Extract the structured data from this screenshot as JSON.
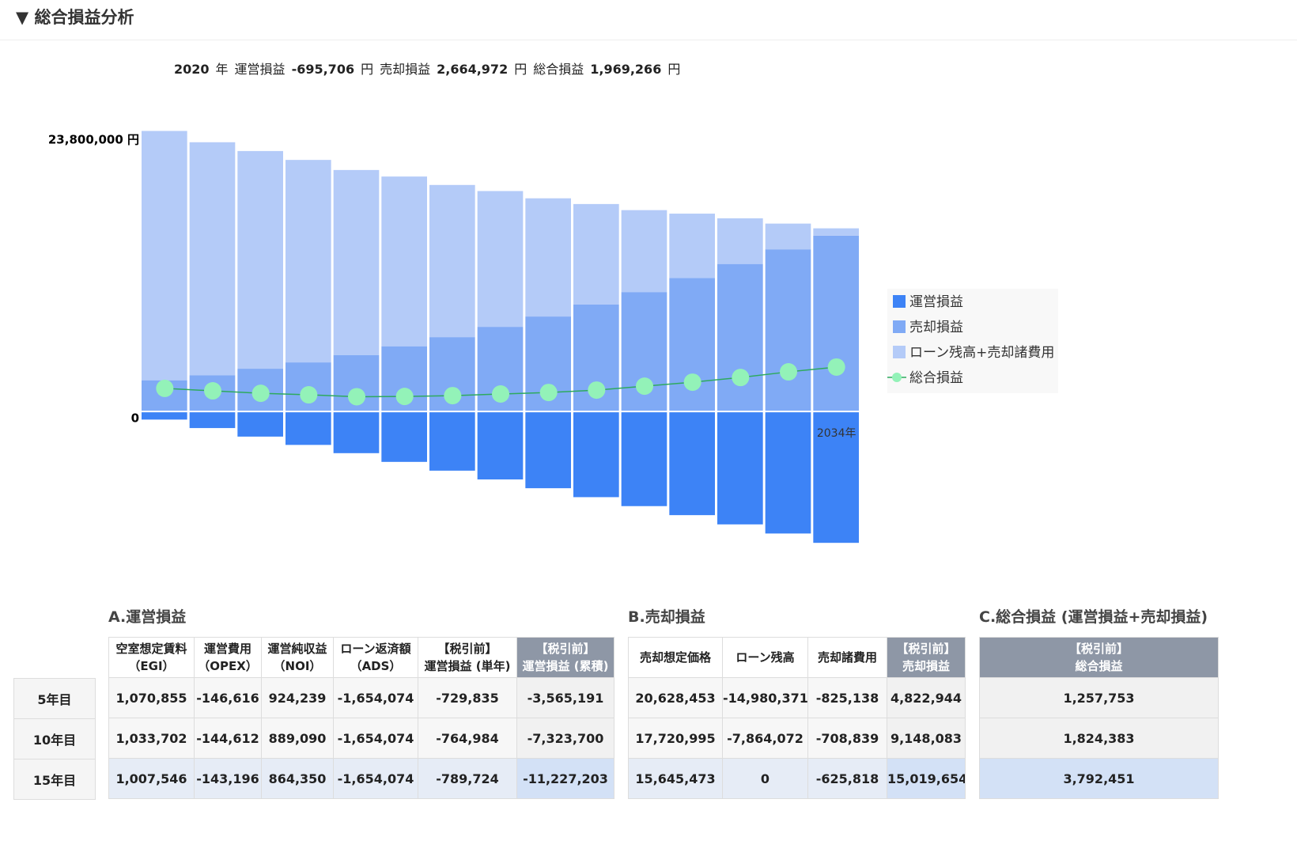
{
  "header": {
    "title": "▼ 総合損益分析"
  },
  "summary": {
    "year": "2020",
    "year_unit": "年",
    "items": [
      {
        "label": "運営損益",
        "value": "-695,706",
        "unit": "円"
      },
      {
        "label": "売却損益",
        "value": "2,664,972",
        "unit": "円"
      },
      {
        "label": "総合損益",
        "value": "1,969,266",
        "unit": "円"
      }
    ]
  },
  "chart_data": {
    "type": "bar",
    "stacked": true,
    "legend": "right",
    "grid": false,
    "categories": [
      null,
      null,
      null,
      null,
      null,
      null,
      null,
      null,
      null,
      null,
      null,
      null,
      null,
      null,
      "2034年"
    ],
    "ylim": [
      -12000000,
      24000000
    ],
    "yticks": [
      0,
      {
        "value": 23800000,
        "label": "23,800,000 円"
      }
    ],
    "series": [
      {
        "name": "運営損益",
        "color": "#3d83f6",
        "values": [
          -695706,
          -1420000,
          -2150000,
          -2860000,
          -3565191,
          -4310000,
          -5060000,
          -5810000,
          -6560000,
          -7323700,
          -8090000,
          -8860000,
          -9650000,
          -10430000,
          -11227203
        ]
      },
      {
        "name": "売却損益",
        "color": "#80aaf5",
        "values": [
          2664972,
          3100000,
          3650000,
          4190000,
          4822944,
          5570000,
          6350000,
          7230000,
          8110000,
          9148083,
          10200000,
          11400000,
          12600000,
          13850000,
          15019654
        ]
      },
      {
        "name": "ローン残高+売却諸費用",
        "color": "#b4cbf8",
        "values": [
          21300000,
          19900000,
          18600000,
          17300000,
          15805509,
          14500000,
          13000000,
          11600000,
          10100000,
          8572911,
          7000000,
          5500000,
          3900000,
          2200000,
          625818
        ]
      },
      {
        "name": "総合損益",
        "type": "line",
        "color": "#2eaa5e",
        "marker_color": "#93f2b8",
        "values": [
          1969266,
          1760000,
          1550000,
          1420000,
          1257753,
          1280000,
          1350000,
          1490000,
          1620000,
          1824383,
          2160000,
          2500000,
          2900000,
          3380000,
          3792451
        ]
      }
    ]
  },
  "row_labels": [
    "5年目",
    "10年目",
    "15年目"
  ],
  "tables": [
    {
      "title": "A.運営損益",
      "columns": [
        [
          "空室想定賃料",
          "（EGI）"
        ],
        [
          "運営費用",
          "（OPEX）"
        ],
        [
          "運営純収益",
          "（NOI）"
        ],
        [
          "ローン返済額",
          "（ADS）"
        ],
        [
          "【税引前】",
          "運営損益 (単年)"
        ],
        [
          "【税引前】",
          "運営損益 (累積)"
        ]
      ],
      "rows": [
        [
          "1,070,855",
          "-146,616",
          "924,239",
          "-1,654,074",
          "-729,835",
          "-3,565,191"
        ],
        [
          "1,033,702",
          "-144,612",
          "889,090",
          "-1,654,074",
          "-764,984",
          "-7,323,700"
        ],
        [
          "1,007,546",
          "-143,196",
          "864,350",
          "-1,654,074",
          "-789,724",
          "-11,227,203"
        ]
      ]
    },
    {
      "title": "B.売却損益",
      "columns": [
        [
          "売却想定価格"
        ],
        [
          "ローン残高"
        ],
        [
          "売却諸費用"
        ],
        [
          "【税引前】",
          "売却損益"
        ]
      ],
      "rows": [
        [
          "20,628,453",
          "-14,980,371",
          "-825,138",
          "4,822,944"
        ],
        [
          "17,720,995",
          "-7,864,072",
          "-708,839",
          "9,148,083"
        ],
        [
          "15,645,473",
          "0",
          "-625,818",
          "15,019,654"
        ]
      ]
    },
    {
      "title": "C.総合損益 (運営損益+売却損益)",
      "columns": [
        [
          "【税引前】",
          "総合損益"
        ]
      ],
      "rows": [
        [
          "1,257,753"
        ],
        [
          "1,824,383"
        ],
        [
          "3,792,451"
        ]
      ]
    }
  ]
}
